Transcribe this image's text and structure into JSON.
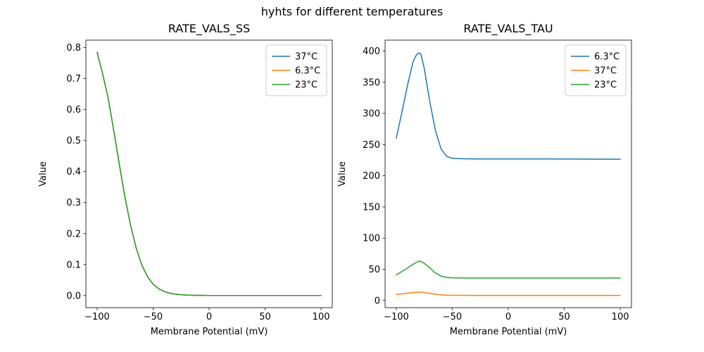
{
  "suptitle": "hyhts for different temperatures",
  "palette": {
    "blue": "#1f77b4",
    "orange": "#ff7f0e",
    "green": "#2ca02c"
  },
  "chart_data": [
    {
      "type": "line",
      "title": "RATE_VALS_SS",
      "xlabel": "Membrane Potential (mV)",
      "ylabel": "Value",
      "xlim": [
        -110,
        110
      ],
      "ylim": [
        -0.039,
        0.824
      ],
      "xticks": [
        -100,
        -50,
        0,
        50,
        100
      ],
      "yticks": [
        0,
        0.1,
        0.2,
        0.3,
        0.4,
        0.5,
        0.6,
        0.7,
        0.8
      ],
      "ytick_decimals": 1,
      "grid": false,
      "legend_position": "upper right",
      "x": [
        -100,
        -95,
        -90,
        -85,
        -80,
        -75,
        -70,
        -65,
        -60,
        -55,
        -50,
        -45,
        -40,
        -35,
        -30,
        -25,
        -20,
        -15,
        -10,
        0,
        10,
        20,
        30,
        40,
        50,
        60,
        70,
        80,
        90,
        100
      ],
      "series": [
        {
          "name": "37°C",
          "color": "#1f77b4",
          "values": [
            0.785,
            0.715,
            0.635,
            0.53,
            0.42,
            0.315,
            0.225,
            0.152,
            0.098,
            0.061,
            0.037,
            0.022,
            0.013,
            0.0075,
            0.0045,
            0.0027,
            0.0016,
            0.001,
            0.0006,
            0.0003,
            0.0002,
            0.0002,
            0.0001,
            0.0001,
            0.0001,
            0.0001,
            0.0001,
            0.0001,
            0.0001,
            0.0001
          ]
        },
        {
          "name": "6.3°C",
          "color": "#ff7f0e",
          "values": [
            0.785,
            0.715,
            0.635,
            0.53,
            0.42,
            0.315,
            0.225,
            0.152,
            0.098,
            0.061,
            0.037,
            0.022,
            0.013,
            0.0075,
            0.0045,
            0.0027,
            0.0016,
            0.001,
            0.0006,
            0.0003,
            0.0002,
            0.0002,
            0.0001,
            0.0001,
            0.0001,
            0.0001,
            0.0001,
            0.0001,
            0.0001,
            0.0001
          ]
        },
        {
          "name": "23°C",
          "color": "#2ca02c",
          "values": [
            0.785,
            0.715,
            0.635,
            0.53,
            0.42,
            0.315,
            0.225,
            0.152,
            0.098,
            0.061,
            0.037,
            0.022,
            0.013,
            0.0075,
            0.0045,
            0.0027,
            0.0016,
            0.001,
            0.0006,
            0.0003,
            0.0002,
            0.0002,
            0.0001,
            0.0001,
            0.0001,
            0.0001,
            0.0001,
            0.0001,
            0.0001,
            0.0001
          ]
        }
      ]
    },
    {
      "type": "line",
      "title": "RATE_VALS_TAU",
      "xlabel": "Membrane Potential (mV)",
      "ylabel": "Value",
      "xlim": [
        -110,
        110
      ],
      "ylim": [
        -11.5,
        417.5
      ],
      "xticks": [
        -100,
        -50,
        0,
        50,
        100
      ],
      "yticks": [
        0,
        50,
        100,
        150,
        200,
        250,
        300,
        350,
        400
      ],
      "ytick_decimals": 0,
      "grid": false,
      "legend_position": "upper right",
      "x": [
        -100,
        -95,
        -90,
        -85,
        -82,
        -80,
        -78,
        -75,
        -70,
        -65,
        -60,
        -55,
        -50,
        -45,
        -40,
        -30,
        -20,
        -10,
        0,
        10,
        20,
        30,
        40,
        50,
        60,
        70,
        80,
        90,
        100
      ],
      "series": [
        {
          "name": "6.3°C",
          "color": "#1f77b4",
          "values": [
            260,
            302,
            345,
            383,
            394,
            397,
            395,
            372,
            318,
            272,
            243,
            231,
            228,
            227.5,
            227.2,
            227,
            227,
            227,
            227,
            227,
            227,
            227,
            227,
            226.8,
            226.8,
            226.7,
            226.6,
            226.5,
            226.5
          ]
        },
        {
          "name": "37°C",
          "color": "#ff7f0e",
          "values": [
            9.5,
            10.5,
            11.6,
            12.8,
            13.3,
            13.5,
            13.3,
            12.7,
            11.3,
            9.9,
            9.0,
            8.5,
            8.3,
            8.2,
            8.2,
            8.1,
            8.1,
            8.1,
            8.1,
            8.1,
            8.1,
            8.1,
            8.1,
            8.1,
            8.1,
            8.1,
            8.1,
            8.1,
            8.1
          ]
        },
        {
          "name": "23°C",
          "color": "#2ca02c",
          "values": [
            41,
            46.5,
            52,
            58,
            61,
            63,
            62.5,
            59.5,
            52,
            44,
            39,
            37,
            36.4,
            36.2,
            36.1,
            36,
            36,
            36,
            36,
            36,
            36,
            36,
            36,
            36,
            36,
            36,
            36,
            36,
            36
          ]
        }
      ]
    }
  ]
}
